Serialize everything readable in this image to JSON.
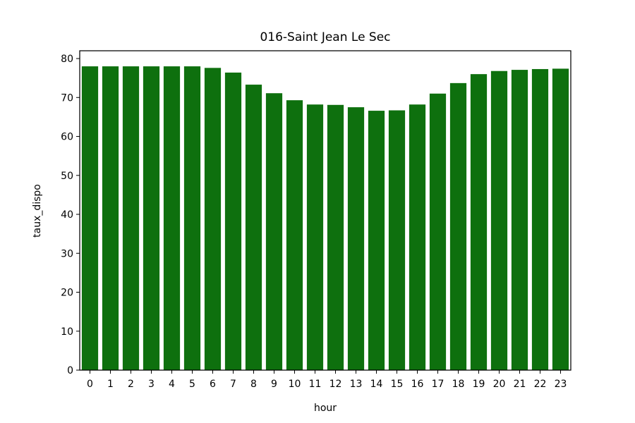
{
  "chart_data": {
    "type": "bar",
    "title": "016-Saint Jean Le Sec",
    "xlabel": "hour",
    "ylabel": "taux_dispo",
    "categories": [
      "0",
      "1",
      "2",
      "3",
      "4",
      "5",
      "6",
      "7",
      "8",
      "9",
      "10",
      "11",
      "12",
      "13",
      "14",
      "15",
      "16",
      "17",
      "18",
      "19",
      "20",
      "21",
      "22",
      "23"
    ],
    "values": [
      78.0,
      78.0,
      78.0,
      78.0,
      78.0,
      78.0,
      77.6,
      76.4,
      73.3,
      71.1,
      69.3,
      68.2,
      68.1,
      67.5,
      66.6,
      66.7,
      68.2,
      71.0,
      73.7,
      76.0,
      76.8,
      77.1,
      77.3,
      77.4
    ],
    "ylim": [
      0,
      82
    ],
    "yticks": [
      0,
      10,
      20,
      30,
      40,
      50,
      60,
      70,
      80
    ],
    "grid": false,
    "legend": "none",
    "bar_color": "#0e700e"
  }
}
